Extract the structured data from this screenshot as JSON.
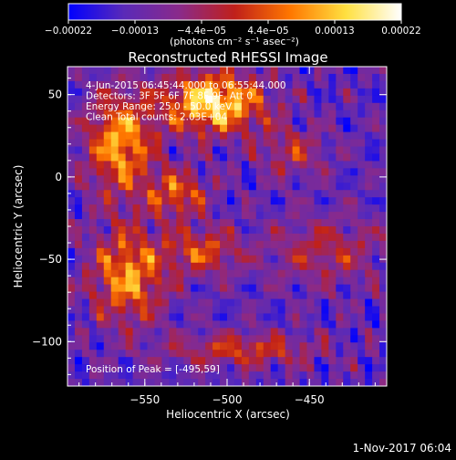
{
  "chart_data": {
    "type": "heatmap",
    "title": "Reconstructed RHESSI Image",
    "xlabel": "Heliocentric X (arcsec)",
    "ylabel": "Heliocentric Y (arcsec)",
    "xlim": [
      -597,
      -403
    ],
    "ylim": [
      -127,
      67
    ],
    "x_ticks": [
      -550,
      -500,
      -450
    ],
    "x_tick_labels": [
      "−550",
      "−500",
      "−450"
    ],
    "y_ticks": [
      50,
      0,
      -50,
      -100
    ],
    "y_tick_labels": [
      "50",
      "0",
      "−50",
      "−100"
    ],
    "colorbar": {
      "range": [
        -0.00022,
        0.00022
      ],
      "tick_labels": [
        "−0.00022",
        "−0.00013",
        "−4.4e−05",
        "4.4e−05",
        "0.00013",
        "0.00022"
      ],
      "unit_label": "(photons cm⁻² s⁻¹ asec⁻²)",
      "colormap": [
        "#0000ff",
        "#5a2ab8",
        "#8a2a8a",
        "#c0201a",
        "#ff7700",
        "#ffe040",
        "#ffffff"
      ]
    },
    "annotations": [
      "4-Jun-2015 06:45:44.000 to 06:55:44.000",
      "Detectors: 3F 5F 6F 7F 8F 9F, Att 0",
      "Energy Range: 25.0 - 50.0 keV",
      "Clean     Total counts: 2.03E+04"
    ],
    "peak_text": "Position of Peak = [-495,59]",
    "peak_position": [
      -495,
      59
    ]
  },
  "footer": {
    "timestamp": "1-Nov-2017 06:04"
  }
}
